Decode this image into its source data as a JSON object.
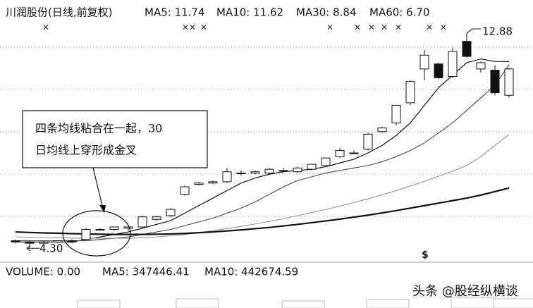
{
  "chart_data": {
    "type": "candlestick",
    "title": "川润股份(日线,前复权)",
    "categories": [
      null,
      null,
      null,
      null,
      null,
      null,
      null,
      null,
      null,
      null,
      null,
      null,
      null,
      null,
      null,
      null,
      null,
      null,
      null,
      null,
      null,
      null,
      null,
      null,
      null,
      null,
      null,
      null,
      null,
      null,
      null,
      null,
      null,
      null,
      null,
      null
    ],
    "open": [
      4.6,
      4.55,
      4.5,
      4.55,
      4.6,
      4.65,
      5.05,
      5.05,
      5.1,
      5.15,
      5.45,
      5.6,
      6.45,
      6.85,
      6.9,
      6.95,
      7.3,
      7.3,
      7.3,
      7.4,
      7.35,
      7.45,
      7.6,
      7.95,
      8.1,
      8.25,
      8.95,
      9.3,
      10.1,
      11.45,
      11.65,
      11.15,
      12.55,
      11.45,
      11.4,
      10.4
    ],
    "high": [
      4.65,
      4.6,
      4.6,
      4.6,
      4.65,
      5.1,
      5.1,
      5.15,
      5.2,
      5.6,
      5.6,
      5.9,
      6.8,
      6.95,
      7.0,
      7.5,
      7.4,
      7.4,
      7.5,
      7.5,
      7.55,
      7.65,
      7.9,
      8.3,
      8.2,
      8.9,
      9.15,
      10.0,
      11.0,
      12.2,
      11.7,
      12.3,
      12.88,
      11.75,
      11.6,
      11.5
    ],
    "low": [
      4.5,
      4.3,
      4.45,
      4.5,
      4.5,
      4.6,
      5.0,
      5.0,
      5.0,
      5.1,
      5.4,
      5.55,
      6.4,
      6.8,
      6.85,
      6.9,
      7.2,
      7.25,
      7.25,
      7.35,
      7.3,
      7.4,
      7.55,
      7.9,
      8.05,
      8.2,
      8.9,
      9.2,
      10.0,
      11.0,
      11.05,
      11.1,
      11.9,
      11.3,
      10.4,
      10.3
    ],
    "close": [
      4.55,
      4.5,
      4.55,
      4.6,
      4.55,
      5.05,
      5.05,
      5.15,
      5.15,
      5.55,
      5.55,
      5.85,
      6.75,
      6.9,
      6.95,
      7.35,
      7.3,
      7.35,
      7.45,
      7.4,
      7.5,
      7.65,
      7.9,
      8.2,
      8.1,
      8.85,
      9.1,
      10.0,
      10.95,
      12.0,
      11.1,
      12.15,
      11.95,
      11.7,
      10.5,
      11.45
    ],
    "series": [
      {
        "name": "MA5: 11.74",
        "color": "#111111",
        "width": 1.2,
        "values": [
          4.55,
          4.55,
          4.55,
          4.55,
          4.55,
          4.65,
          4.75,
          4.85,
          4.95,
          5.1,
          5.25,
          5.4,
          5.7,
          6.0,
          6.3,
          6.6,
          6.9,
          7.1,
          7.25,
          7.35,
          7.4,
          7.45,
          7.55,
          7.7,
          7.85,
          8.1,
          8.4,
          8.8,
          9.3,
          10.0,
          10.7,
          11.2,
          11.7,
          11.85,
          11.75,
          11.74
        ]
      },
      {
        "name": "MA10: 11.62",
        "color": "#555555",
        "width": 1.2,
        "values": [
          4.6,
          4.6,
          4.6,
          4.6,
          4.6,
          4.6,
          4.65,
          4.7,
          4.75,
          4.85,
          4.95,
          5.05,
          5.2,
          5.35,
          5.5,
          5.7,
          5.9,
          6.15,
          6.45,
          6.75,
          7.0,
          7.15,
          7.3,
          7.4,
          7.5,
          7.6,
          7.75,
          7.95,
          8.2,
          8.5,
          8.9,
          9.3,
          9.8,
          10.3,
          10.8,
          11.62
        ]
      },
      {
        "name": "MA30: 8.84",
        "color": "#9a9a9a",
        "width": 1.2,
        "values": [
          4.75,
          4.74,
          4.73,
          4.72,
          4.71,
          4.7,
          4.7,
          4.7,
          4.7,
          4.72,
          4.75,
          4.8,
          4.85,
          4.92,
          5.0,
          5.08,
          5.17,
          5.27,
          5.37,
          5.48,
          5.6,
          5.72,
          5.85,
          5.98,
          6.12,
          6.27,
          6.43,
          6.6,
          6.78,
          6.97,
          7.17,
          7.38,
          7.6,
          7.95,
          8.4,
          8.84
        ]
      },
      {
        "name": "MA60: 6.70",
        "color": "#111111",
        "width": 2.2,
        "values": [
          4.95,
          4.93,
          4.91,
          4.9,
          4.88,
          4.87,
          4.86,
          4.85,
          4.85,
          4.85,
          4.86,
          4.87,
          4.89,
          4.92,
          4.95,
          4.99,
          5.03,
          5.08,
          5.13,
          5.19,
          5.25,
          5.32,
          5.39,
          5.46,
          5.54,
          5.62,
          5.71,
          5.8,
          5.9,
          6.0,
          6.1,
          6.2,
          6.3,
          6.42,
          6.56,
          6.7
        ]
      }
    ],
    "ylim": [
      3.8,
      14.2
    ],
    "grid_lines": [
      5.57,
      7.26,
      8.94,
      10.63,
      12.32
    ],
    "high_label": {
      "value": 12.88,
      "label": "12.88"
    },
    "low_label": {
      "value": 4.3,
      "label": "4.30"
    },
    "callout": [
      "四条均线粘合在一起，30",
      "日均线上穿形成金叉"
    ],
    "volume_legend": [
      "VOLUME: 0.00",
      "MA5: 347446.41",
      "MA10: 442674.59"
    ],
    "marker": "$",
    "watermark": "头条 @股经纵横谈"
  }
}
